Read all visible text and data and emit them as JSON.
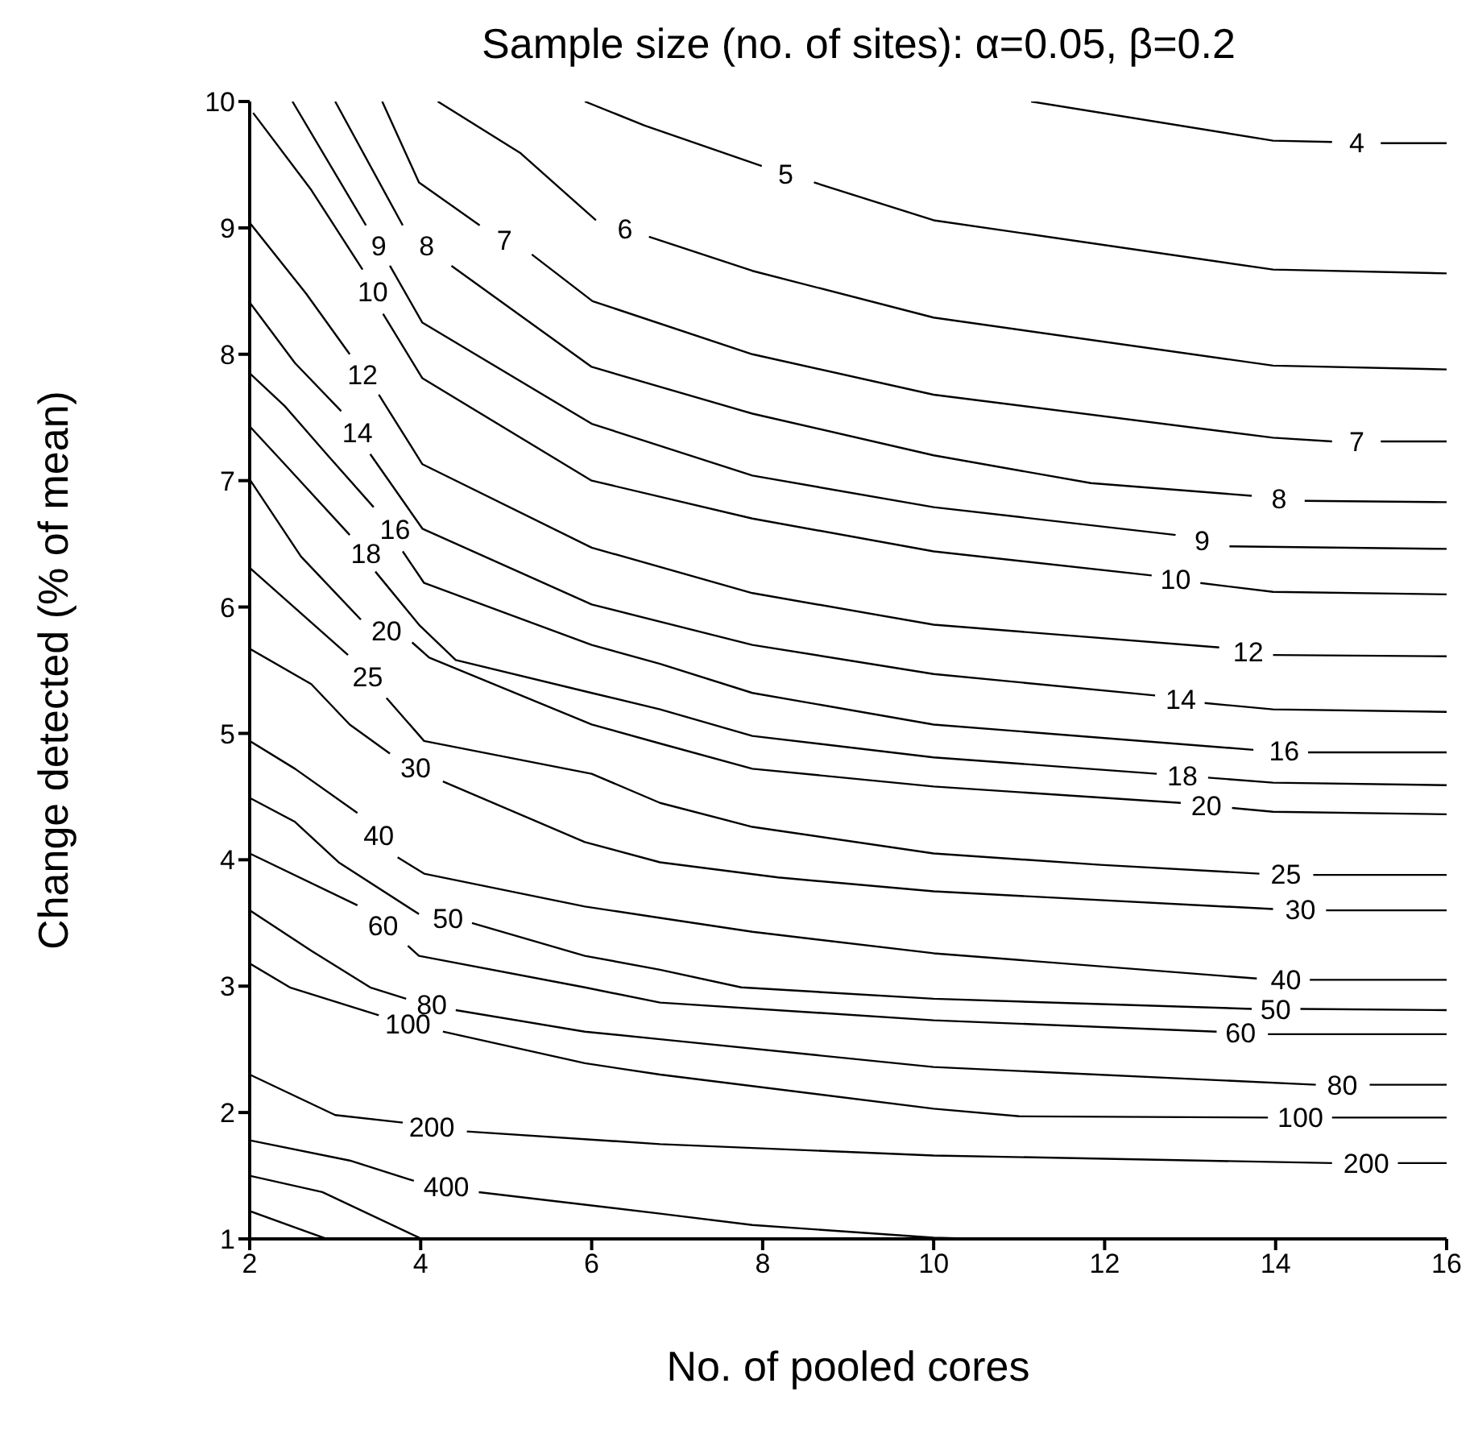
{
  "chart_data": {
    "type": "line",
    "title": "Sample size (no. of sites): α=0.05, β=0.2",
    "xlabel": "No. of pooled cores",
    "ylabel": "Change detected (% of mean)",
    "xlim": [
      2,
      16
    ],
    "ylim": [
      1,
      10
    ],
    "xticks": [
      2,
      4,
      6,
      8,
      10,
      12,
      14,
      16
    ],
    "yticks": [
      1,
      2,
      3,
      4,
      5,
      6,
      7,
      8,
      9,
      10
    ],
    "line_style": "solid",
    "series": [
      {
        "name": "4",
        "color": "#000000",
        "x": [
          11.14,
          13.97,
          14.66,
          14.95,
          15.23,
          16
        ],
        "values": [
          10,
          9.69,
          9.68,
          null,
          9.67,
          9.67
        ]
      },
      {
        "name": "5",
        "color": "#000000",
        "x": [
          5.92,
          6.62,
          7.99,
          8.27,
          8.6,
          10.0,
          13.97,
          16
        ],
        "values": [
          10,
          9.81,
          9.49,
          null,
          9.36,
          9.06,
          8.67,
          8.64
        ]
      },
      {
        "name": "6",
        "color": "#000000",
        "x": [
          4.2,
          5.17,
          6.05,
          6.39,
          6.67,
          7.88,
          10.0,
          13.97,
          16
        ],
        "values": [
          10,
          9.59,
          9.06,
          null,
          8.93,
          8.66,
          8.29,
          7.91,
          7.88
        ]
      },
      {
        "name": "7",
        "color": "#000000",
        "x": [
          3.55,
          3.98,
          4.69,
          4.98,
          5.3,
          6.01,
          7.88,
          10.0,
          13.97,
          14.66,
          14.95,
          15.23,
          16
        ],
        "values": [
          10,
          9.36,
          9.02,
          null,
          8.79,
          8.42,
          8.0,
          7.68,
          7.34,
          7.31,
          null,
          7.31,
          7.31
        ]
      },
      {
        "name": "8",
        "color": "#000000",
        "x": [
          3.0,
          3.79,
          4.07,
          4.36,
          6.0,
          7.88,
          10.0,
          11.84,
          13.72,
          14.04,
          14.34,
          16
        ],
        "values": [
          10,
          9.02,
          null,
          8.7,
          7.9,
          7.53,
          7.2,
          6.98,
          6.88,
          null,
          6.84,
          6.83
        ]
      },
      {
        "name": "9",
        "color": "#000000",
        "x": [
          2.5,
          3.36,
          3.51,
          3.64,
          4.02,
          6.0,
          7.88,
          10.0,
          12.83,
          13.14,
          13.46,
          16
        ],
        "values": [
          10,
          9.02,
          null,
          8.7,
          8.25,
          7.45,
          7.04,
          6.79,
          6.57,
          null,
          6.48,
          6.46
        ]
      },
      {
        "name": "10",
        "color": "#000000",
        "x": [
          2.04,
          2.72,
          3.32,
          3.44,
          3.56,
          4.02,
          6.0,
          7.88,
          10.0,
          12.55,
          12.83,
          13.12,
          13.97,
          16
        ],
        "values": [
          9.91,
          9.3,
          8.67,
          null,
          8.32,
          7.81,
          7.0,
          6.7,
          6.44,
          6.25,
          null,
          6.19,
          6.12,
          6.1
        ]
      },
      {
        "name": "12",
        "color": "#000000",
        "x": [
          2,
          2.66,
          3.17,
          3.32,
          3.51,
          4.02,
          6.0,
          7.88,
          10.0,
          13.34,
          13.68,
          13.97,
          16
        ],
        "values": [
          9.04,
          8.48,
          8.0,
          null,
          7.68,
          7.13,
          6.47,
          6.11,
          5.86,
          5.68,
          null,
          5.62,
          5.61
        ]
      },
      {
        "name": "14",
        "color": "#000000",
        "x": [
          2,
          2.53,
          3.07,
          3.26,
          3.41,
          4.02,
          6.0,
          7.88,
          10.0,
          12.59,
          12.89,
          13.17,
          13.97,
          16
        ],
        "values": [
          8.41,
          7.93,
          7.55,
          null,
          7.21,
          6.62,
          6.02,
          5.7,
          5.47,
          5.3,
          null,
          5.24,
          5.19,
          5.17
        ]
      },
      {
        "name": "16",
        "color": "#000000",
        "x": [
          2,
          2.41,
          2.9,
          3.45,
          3.7,
          3.79,
          4.04,
          6.0,
          6.8,
          7.88,
          10.0,
          13.74,
          14.1,
          14.38,
          16
        ],
        "values": [
          7.85,
          7.59,
          7.21,
          6.79,
          null,
          6.44,
          6.19,
          5.7,
          5.55,
          5.32,
          5.07,
          4.87,
          null,
          4.85,
          4.85
        ]
      },
      {
        "name": "18",
        "color": "#000000",
        "x": [
          2,
          2.41,
          3.17,
          3.36,
          3.47,
          3.98,
          4.41,
          6.0,
          6.8,
          7.88,
          10.0,
          12.61,
          12.91,
          13.21,
          13.97,
          16
        ],
        "values": [
          7.43,
          7.13,
          6.57,
          null,
          6.28,
          5.86,
          5.58,
          5.32,
          5.19,
          4.98,
          4.81,
          4.68,
          null,
          4.65,
          4.61,
          4.59
        ]
      },
      {
        "name": "20",
        "color": "#000000",
        "x": [
          2,
          2.6,
          3.3,
          3.6,
          3.9,
          4.1,
          6.0,
          6.8,
          7.88,
          10.0,
          12.89,
          13.19,
          13.49,
          13.97,
          16
        ],
        "values": [
          7.01,
          6.4,
          5.9,
          null,
          5.72,
          5.6,
          5.07,
          4.92,
          4.72,
          4.58,
          4.45,
          null,
          4.41,
          4.38,
          4.36
        ]
      },
      {
        "name": "25",
        "color": "#000000",
        "x": [
          2,
          2.6,
          3.15,
          3.38,
          3.6,
          4.04,
          6.0,
          6.8,
          7.88,
          10.0,
          11.95,
          13.81,
          14.12,
          14.44,
          16
        ],
        "values": [
          6.31,
          5.95,
          5.62,
          null,
          5.28,
          4.94,
          4.68,
          4.45,
          4.26,
          4.05,
          3.96,
          3.89,
          null,
          3.88,
          3.88
        ]
      },
      {
        "name": "30",
        "color": "#000000",
        "x": [
          2,
          2.72,
          3.17,
          3.64,
          3.94,
          4.26,
          5.92,
          6.8,
          8.18,
          10.0,
          13.97,
          14.29,
          14.59,
          16
        ],
        "values": [
          5.67,
          5.39,
          5.07,
          4.84,
          null,
          4.62,
          4.14,
          3.98,
          3.86,
          3.75,
          3.61,
          null,
          3.6,
          3.6
        ]
      },
      {
        "name": "40",
        "color": "#000000",
        "x": [
          2,
          2.53,
          3.26,
          3.51,
          3.73,
          4.04,
          5.92,
          6.8,
          7.88,
          10.0,
          13.78,
          14.12,
          14.4,
          16
        ],
        "values": [
          4.94,
          4.72,
          4.37,
          null,
          4.02,
          3.89,
          3.63,
          3.54,
          3.43,
          3.26,
          3.06,
          null,
          3.05,
          3.05
        ]
      },
      {
        "name": "50",
        "color": "#000000",
        "x": [
          2,
          2.53,
          3.04,
          3.98,
          4.32,
          4.6,
          5.92,
          6.8,
          7.75,
          10.0,
          13.72,
          14.0,
          14.29,
          16
        ],
        "values": [
          4.49,
          4.3,
          3.98,
          3.57,
          null,
          3.5,
          3.24,
          3.13,
          2.99,
          2.9,
          2.82,
          null,
          2.82,
          2.81
        ]
      },
      {
        "name": "60",
        "color": "#000000",
        "x": [
          2,
          3.26,
          3.56,
          3.85,
          3.98,
          5.92,
          6.8,
          10.0,
          13.31,
          13.59,
          13.91,
          16
        ],
        "values": [
          4.05,
          3.64,
          null,
          3.32,
          3.24,
          2.99,
          2.87,
          2.73,
          2.64,
          null,
          2.62,
          2.62
        ]
      },
      {
        "name": "80",
        "color": "#000000",
        "x": [
          2,
          2.72,
          3.41,
          3.83,
          4.13,
          4.41,
          5.92,
          6.8,
          10.0,
          14.47,
          14.78,
          15.1,
          16
        ],
        "values": [
          3.6,
          3.28,
          2.99,
          2.9,
          null,
          2.81,
          2.64,
          2.58,
          2.36,
          2.22,
          null,
          2.22,
          2.22
        ]
      },
      {
        "name": "100",
        "color": "#000000",
        "x": [
          2,
          2.47,
          3.51,
          3.85,
          4.26,
          5.92,
          6.8,
          10.0,
          11.0,
          13.91,
          14.29,
          14.66,
          16
        ],
        "values": [
          3.18,
          2.99,
          2.77,
          null,
          2.64,
          2.39,
          2.3,
          2.03,
          1.97,
          1.96,
          null,
          1.96,
          1.96
        ]
      },
      {
        "name": "200",
        "color": "#000000",
        "x": [
          2,
          3.0,
          3.79,
          4.13,
          4.54,
          6.8,
          10.0,
          14.66,
          15.06,
          15.43,
          16
        ],
        "values": [
          2.3,
          1.98,
          1.92,
          null,
          1.85,
          1.75,
          1.66,
          1.6,
          null,
          1.6,
          1.6
        ]
      },
      {
        "name": "400",
        "color": "#000000",
        "x": [
          2,
          3.17,
          3.92,
          4.3,
          4.68,
          6.8,
          7.88,
          10.0,
          10.52
        ],
        "values": [
          1.78,
          1.62,
          1.46,
          null,
          1.37,
          1.2,
          1.11,
          1.01,
          1
        ]
      },
      {
        "color": "#000000",
        "x": [
          2,
          2.85,
          3.98,
          4.0
        ],
        "values": [
          1.5,
          1.37,
          1.01,
          1
        ]
      },
      {
        "color": "#000000",
        "x": [
          2,
          2.9
        ],
        "values": [
          1.22,
          1
        ]
      }
    ]
  }
}
